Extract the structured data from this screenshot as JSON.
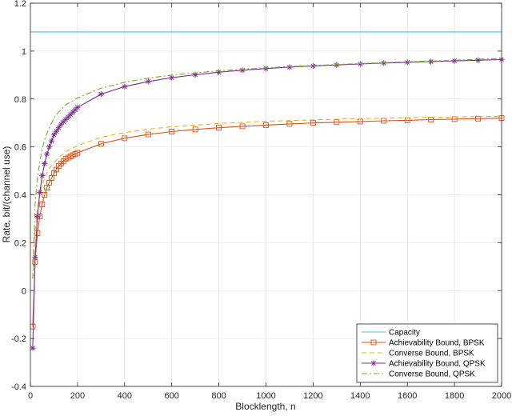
{
  "chart_data": {
    "type": "line",
    "title": "",
    "xlabel": "Blocklength, n",
    "ylabel": "Rate, bit/(channel use)",
    "xlim": [
      0,
      2000
    ],
    "ylim": [
      -0.4,
      1.2
    ],
    "x_ticks": [
      0,
      200,
      400,
      600,
      800,
      1000,
      1200,
      1400,
      1600,
      1800,
      2000
    ],
    "y_ticks": [
      -0.4,
      -0.2,
      0,
      0.2,
      0.4,
      0.6,
      0.8,
      1,
      1.2
    ],
    "grid": true,
    "legend_position": "bottom-right",
    "series": [
      {
        "name": "Capacity",
        "color": "#4DBEEE",
        "dash": "solid",
        "marker": "none",
        "x": [
          0,
          2000
        ],
        "y": [
          1.08,
          1.08
        ]
      },
      {
        "name": "Achievability Bound, BPSK",
        "color": "#D95319",
        "dash": "solid",
        "marker": "square",
        "x": [
          10,
          20,
          30,
          40,
          50,
          60,
          70,
          80,
          90,
          100,
          110,
          120,
          130,
          140,
          150,
          160,
          170,
          180,
          190,
          200,
          300,
          400,
          500,
          600,
          700,
          800,
          900,
          1000,
          1100,
          1200,
          1300,
          1400,
          1500,
          1600,
          1700,
          1800,
          1900,
          2000
        ],
        "y": [
          -0.15,
          0.12,
          0.24,
          0.31,
          0.36,
          0.4,
          0.43,
          0.45,
          0.47,
          0.49,
          0.505,
          0.52,
          0.53,
          0.54,
          0.55,
          0.555,
          0.56,
          0.565,
          0.57,
          0.575,
          0.613,
          0.636,
          0.652,
          0.664,
          0.673,
          0.68,
          0.686,
          0.691,
          0.696,
          0.7,
          0.703,
          0.706,
          0.709,
          0.711,
          0.714,
          0.716,
          0.718,
          0.72
        ]
      },
      {
        "name": "Converse Bound, BPSK",
        "color": "#EDB120",
        "dash": "dashed",
        "marker": "none",
        "x": [
          10,
          20,
          30,
          40,
          50,
          60,
          80,
          100,
          120,
          150,
          200,
          300,
          400,
          500,
          600,
          800,
          1000,
          1200,
          1400,
          1600,
          1800,
          2000
        ],
        "y": [
          0.05,
          0.25,
          0.34,
          0.4,
          0.44,
          0.47,
          0.51,
          0.535,
          0.555,
          0.58,
          0.605,
          0.64,
          0.66,
          0.674,
          0.684,
          0.698,
          0.707,
          0.713,
          0.718,
          0.722,
          0.725,
          0.728
        ]
      },
      {
        "name": "Achievability Bound, QPSK",
        "color": "#7E2F8E",
        "dash": "solid",
        "marker": "asterisk",
        "x": [
          10,
          20,
          30,
          40,
          50,
          60,
          70,
          80,
          90,
          100,
          110,
          120,
          130,
          140,
          150,
          160,
          170,
          180,
          190,
          200,
          300,
          400,
          500,
          600,
          700,
          800,
          900,
          1000,
          1100,
          1200,
          1300,
          1400,
          1500,
          1600,
          1700,
          1800,
          1900,
          2000
        ],
        "y": [
          -0.24,
          0.14,
          0.31,
          0.41,
          0.48,
          0.53,
          0.57,
          0.6,
          0.625,
          0.65,
          0.665,
          0.68,
          0.695,
          0.705,
          0.715,
          0.725,
          0.735,
          0.745,
          0.755,
          0.765,
          0.82,
          0.852,
          0.873,
          0.889,
          0.901,
          0.912,
          0.92,
          0.927,
          0.933,
          0.938,
          0.942,
          0.946,
          0.95,
          0.953,
          0.956,
          0.959,
          0.962,
          0.965
        ]
      },
      {
        "name": "Converse Bound, QPSK",
        "color": "#77AC30",
        "dash": "dashdot",
        "marker": "none",
        "x": [
          10,
          20,
          30,
          40,
          50,
          60,
          80,
          100,
          120,
          150,
          200,
          300,
          400,
          500,
          600,
          800,
          1000,
          1200,
          1400,
          1600,
          1800,
          2000
        ],
        "y": [
          0.05,
          0.36,
          0.47,
          0.54,
          0.59,
          0.63,
          0.68,
          0.72,
          0.745,
          0.775,
          0.805,
          0.845,
          0.87,
          0.887,
          0.9,
          0.918,
          0.93,
          0.94,
          0.948,
          0.955,
          0.962,
          0.97
        ]
      }
    ]
  }
}
